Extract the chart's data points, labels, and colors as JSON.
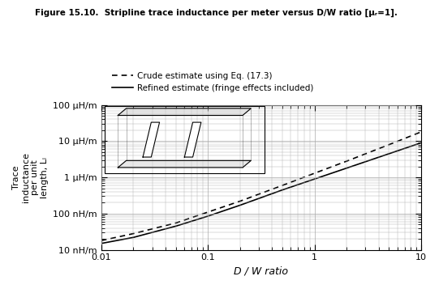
{
  "title": "Figure 15.10.  Stripline trace inductance per meter versus D/W ratio [μᵣ=1].",
  "xlabel": "D / W ratio",
  "ylabel": "Trace\ninductance\nper unit\nlength, Lₗ",
  "xlim": [
    0.01,
    10
  ],
  "ylim": [
    1e-08,
    0.0001
  ],
  "yticks": [
    1e-08,
    1e-07,
    1e-06,
    1e-05,
    0.0001
  ],
  "ytick_labels": [
    "10 nH/m",
    "100 nH/m",
    "1 μH/m",
    "10 μH/m",
    "100 μH/m"
  ],
  "xticks": [
    0.01,
    0.1,
    1,
    10
  ],
  "xtick_labels": [
    "0.01",
    "0.1",
    "1",
    "10"
  ],
  "legend_crude": "Crude estimate using Eq. (17.3)",
  "legend_refined": "Refined estimate (fringe effects included)",
  "bg_color": "#ffffff",
  "grid_color": "#aaaaaa",
  "line_color": "#000000",
  "crude_x": [
    0.01,
    0.02,
    0.05,
    0.1,
    0.2,
    0.5,
    1.0,
    2.0,
    5.0,
    10.0
  ],
  "crude_y": [
    1.8e-08,
    2.8e-08,
    5.5e-08,
    1.1e-07,
    2.2e-07,
    6e-07,
    1.3e-06,
    2.8e-06,
    8e-06,
    1.8e-05
  ],
  "refined_x": [
    0.01,
    0.02,
    0.05,
    0.1,
    0.2,
    0.5,
    1.0,
    2.0,
    5.0,
    10.0
  ],
  "refined_y": [
    1.5e-08,
    2.2e-08,
    4.5e-08,
    8.5e-08,
    1.7e-07,
    4.5e-07,
    9e-07,
    1.8e-06,
    4.5e-06,
    9e-06
  ]
}
